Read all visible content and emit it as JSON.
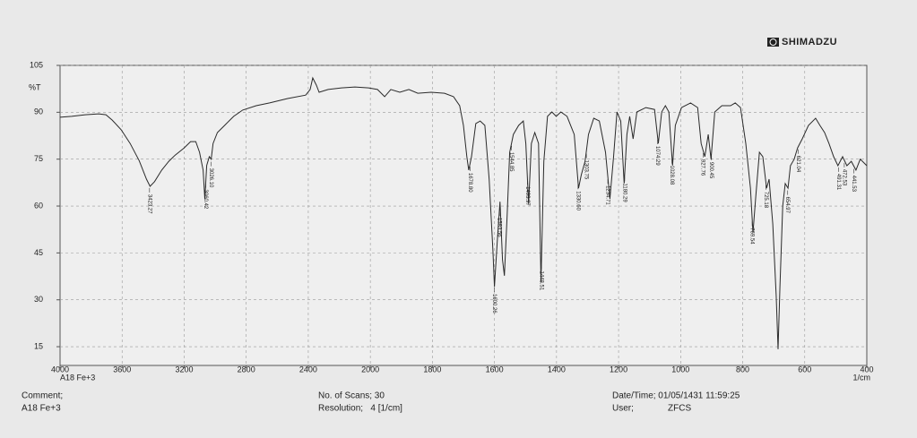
{
  "chart_data": {
    "type": "line",
    "y_label": "%T",
    "x_label": "1/cm",
    "sample": "A18 Fe+3",
    "x": [
      4000,
      3925,
      3838,
      3751,
      3704,
      3664,
      3606,
      3548,
      3490,
      3443,
      3420,
      3391,
      3345,
      3299,
      3258,
      3200,
      3159,
      3125,
      3101,
      3078,
      3067,
      3055,
      3038,
      3026,
      3014,
      2986,
      2939,
      2881,
      2823,
      2736,
      2649,
      2533,
      2417,
      2388,
      2371,
      2348,
      2330,
      2272,
      2186,
      2099,
      2012,
      1977,
      1954,
      1934,
      1905,
      1876,
      1847,
      1804,
      1761,
      1732,
      1712,
      1700,
      1689,
      1683,
      1674,
      1660,
      1646,
      1631,
      1617,
      1605,
      1600,
      1591,
      1582,
      1574,
      1568,
      1559,
      1551,
      1539,
      1522,
      1507,
      1499,
      1490,
      1481,
      1470,
      1458,
      1450,
      1441,
      1429,
      1415,
      1401,
      1386,
      1366,
      1343,
      1329,
      1320,
      1308,
      1297,
      1280,
      1262,
      1242,
      1228,
      1216,
      1205,
      1193,
      1182,
      1173,
      1164,
      1153,
      1141,
      1112,
      1084,
      1072,
      1061,
      1049,
      1038,
      1026,
      1017,
      997,
      968,
      945,
      934,
      922,
      911,
      902,
      890,
      867,
      839,
      824,
      807,
      790,
      775,
      767,
      758,
      746,
      735,
      723,
      715,
      703,
      692,
      686,
      680,
      671,
      663,
      654,
      646,
      634,
      623,
      608,
      588,
      565,
      551,
      536,
      522,
      507,
      493,
      478,
      464,
      450,
      435,
      421,
      400
    ],
    "series": [
      {
        "color": "#2a2a2a",
        "values": [
          88.4,
          88.7,
          89.2,
          89.5,
          89.2,
          87.5,
          84.4,
          80,
          74.5,
          68.6,
          66.3,
          67.8,
          71.5,
          74.3,
          76.3,
          78.6,
          80.6,
          80.6,
          77.2,
          71.5,
          62.3,
          73,
          75.8,
          75,
          80,
          83.5,
          85.8,
          88.7,
          90.7,
          92.1,
          93,
          94.4,
          95.5,
          97.3,
          101,
          98.7,
          96.4,
          97.3,
          97.8,
          98.1,
          97.8,
          97.3,
          95,
          97.3,
          96.4,
          97.3,
          96.1,
          96.4,
          96.1,
          95,
          92.1,
          85.8,
          75.8,
          71.5,
          75.8,
          86.4,
          87.2,
          85.8,
          68.6,
          45.7,
          34.2,
          48.5,
          61.4,
          42.8,
          37.7,
          57.2,
          77.2,
          82.9,
          85.8,
          87.2,
          80,
          60.6,
          80,
          83.5,
          80,
          35.7,
          74.3,
          88.7,
          90.1,
          88.7,
          90.1,
          88.7,
          82.9,
          65.7,
          70,
          74.3,
          82.9,
          88.1,
          87.2,
          77.2,
          62.3,
          75.8,
          90.1,
          87.2,
          67.2,
          82.9,
          88.7,
          81.5,
          90.1,
          91.5,
          90.9,
          80,
          90.1,
          92.1,
          90.1,
          72.9,
          85.8,
          91.5,
          93,
          91.5,
          80,
          75.8,
          82.9,
          75,
          90.1,
          92.1,
          92.1,
          93,
          91.5,
          80,
          65.7,
          51.4,
          62.9,
          77.2,
          75.8,
          65.7,
          68.6,
          54.3,
          31.4,
          14.2,
          34.2,
          60,
          67.2,
          65.7,
          72.9,
          75,
          78.6,
          81.5,
          85.8,
          88.1,
          85.8,
          83.5,
          80,
          75.8,
          72.9,
          75.8,
          72.9,
          74.3,
          71.5,
          75,
          72.9
        ]
      }
    ],
    "xlim": [
      4000,
      400
    ],
    "xticks": [
      4000,
      3600,
      3200,
      2800,
      2400,
      2000,
      1800,
      1600,
      1400,
      1200,
      1000,
      800,
      600,
      400
    ],
    "ylim": [
      9,
      105
    ],
    "yticks": [
      105,
      90,
      75,
      60,
      45,
      30,
      15
    ],
    "grid": true,
    "peaks": {
      "values": [
        3423.27,
        3060.42,
        3026.1,
        1678.8,
        1600.26,
        1583.56,
        1544.85,
        1493.97,
        1448.51,
        1330.6,
        1303.75,
        1234.71,
        1180.29,
        1074.29,
        1028.08,
        927.76,
        900.45,
        769.54,
        725.18,
        654.97,
        621.04,
        491.31,
        472.53,
        441.53
      ],
      "value_labels": [
        "3423.27",
        "3060.42",
        "3026.10",
        "1678.80",
        "1600.26",
        "1583.56",
        "1544.85",
        "1493.97",
        "1448.51",
        "1330.60",
        "1303.75",
        "1234.71",
        "1180.29",
        "1074.29",
        "1028.08",
        "927.76",
        "900.45",
        "769.54",
        "725.18",
        "654.97",
        "621.04",
        "491.31",
        "472.53",
        "441.53"
      ]
    }
  },
  "brand": "SHIMADZU",
  "info": {
    "comment_label": "Comment;",
    "comment": "A18 Fe+3",
    "scans": "No. of Scans; 30",
    "resolution": "Resolution;   4 [1/cm]",
    "datetime": "Date/Time; 01/05/1431 11:59:25",
    "user_label": "User;",
    "user": "ZFCS"
  }
}
